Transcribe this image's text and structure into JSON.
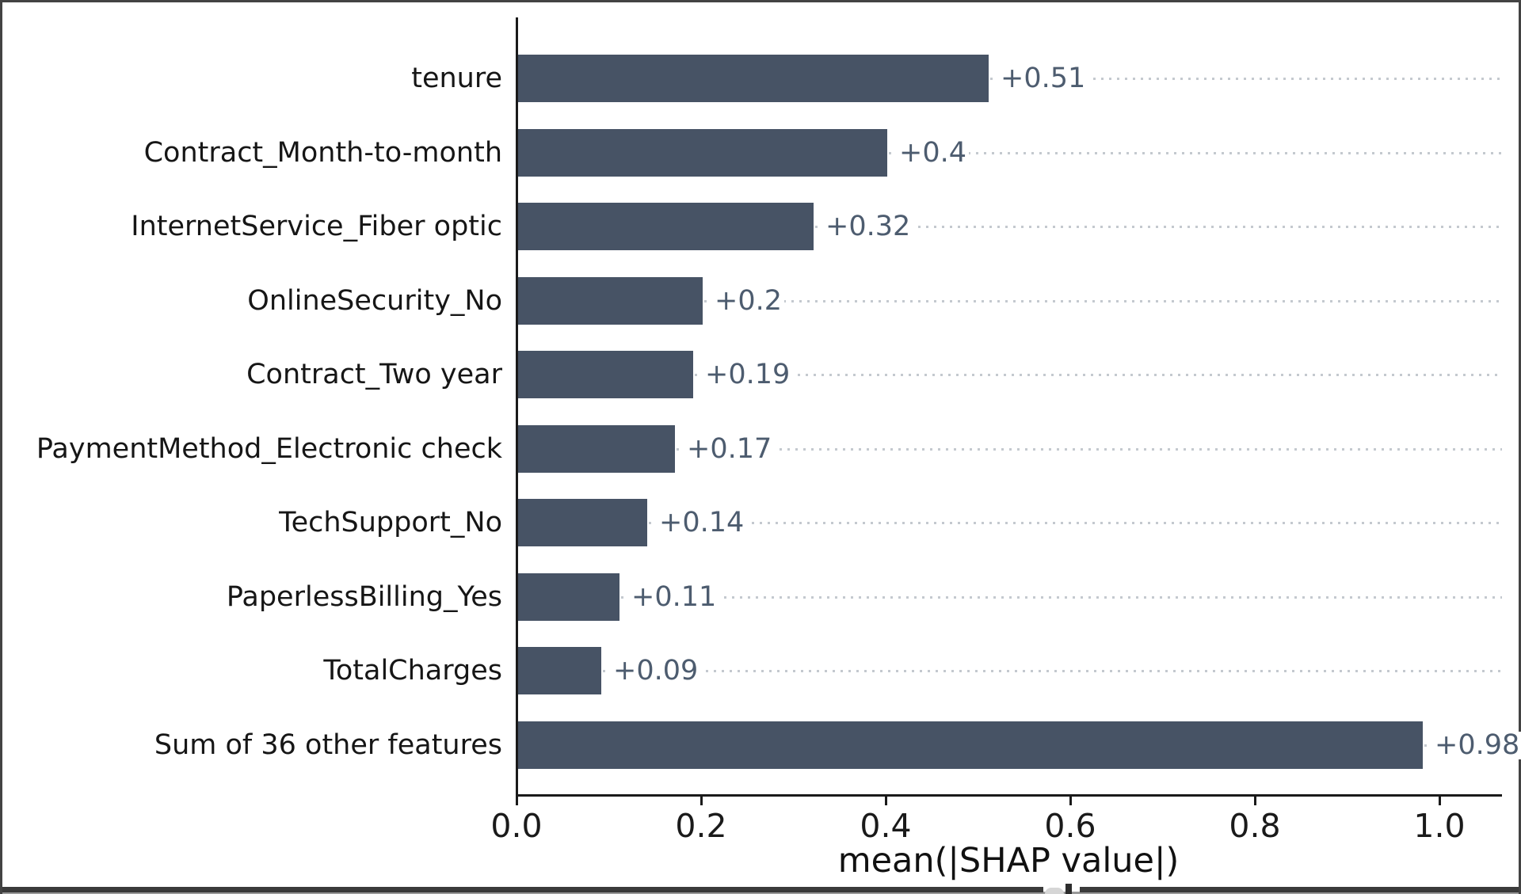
{
  "chart_data": {
    "type": "bar",
    "orientation": "horizontal",
    "title": "",
    "xlabel": "mean(|SHAP value|)",
    "ylabel": "",
    "categories": [
      "tenure",
      "Contract_Month-to-month",
      "InternetService_Fiber optic",
      "OnlineSecurity_No",
      "Contract_Two year",
      "PaymentMethod_Electronic check",
      "TechSupport_No",
      "PaperlessBilling_Yes",
      "TotalCharges",
      "Sum of 36 other features"
    ],
    "values": [
      0.51,
      0.4,
      0.32,
      0.2,
      0.19,
      0.17,
      0.14,
      0.11,
      0.09,
      0.98
    ],
    "bar_labels": [
      "+0.51",
      "+0.4",
      "+0.32",
      "+0.2",
      "+0.19",
      "+0.17",
      "+0.14",
      "+0.11",
      "+0.09",
      "+0.98"
    ],
    "x_ticks": [
      "0.0",
      "0.2",
      "0.4",
      "0.6",
      "0.8",
      "1.0"
    ],
    "x_tick_values": [
      0.0,
      0.2,
      0.4,
      0.6,
      0.8,
      1.0
    ],
    "xlim": [
      0.0,
      1.07
    ],
    "grid": "dotted-horizontal-per-bar",
    "legend": "none",
    "colors": {
      "bar": "#475365",
      "bar_label": "#4d5c6f",
      "grid_dot": "#c4c9cf",
      "axis": "#1a1a1a",
      "text": "#161616",
      "frame": "#434343"
    }
  }
}
